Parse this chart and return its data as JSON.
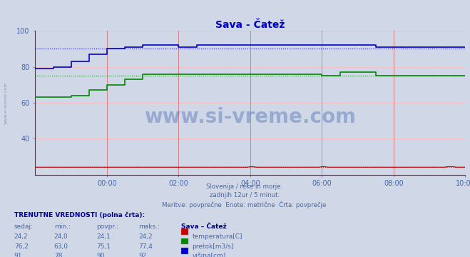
{
  "title": "Sava - Čatež",
  "title_color": "#0000cc",
  "bg_color": "#d0d8e8",
  "plot_bg_color": "#d0d8e8",
  "ylim": [
    20,
    100
  ],
  "xlim": [
    0,
    144
  ],
  "xtick_positions": [
    24,
    48,
    72,
    96,
    120,
    144
  ],
  "xtick_labels": [
    "00:00",
    "02:00",
    "04:00",
    "06:00",
    "08:00",
    "10:00"
  ],
  "ytick_positions": [
    40,
    60,
    80,
    100
  ],
  "ytick_labels": [
    "40",
    "60",
    "80",
    "100"
  ],
  "subtitle_lines": [
    "Slovenija / reke in morje.",
    "zadnjih 12ur / 5 minut.",
    "Meritve: povprečne  Enote: metrične  Črta: povprečje"
  ],
  "subtitle_color": "#4466aa",
  "watermark_text": "www.si-vreme.com",
  "watermark_color": "#4466aa",
  "watermark_alpha": 0.4,
  "grid_color_v": "#dd4444",
  "grid_color_h": "#ffbbbb",
  "temp_color": "#cc0000",
  "flow_color": "#008800",
  "height_color": "#0000cc",
  "flow_avg": 75.1,
  "height_avg": 90,
  "temp_avg": 24.1,
  "flow_data_x": [
    0,
    6,
    12,
    18,
    24,
    30,
    36,
    42,
    48,
    54,
    60,
    66,
    72,
    78,
    84,
    90,
    96,
    102,
    108,
    114,
    120,
    126,
    132,
    138,
    144
  ],
  "flow_data_y": [
    63,
    63,
    64,
    67,
    70,
    73,
    76,
    76,
    76,
    76,
    76,
    76,
    76,
    76,
    76,
    76,
    75,
    77,
    77,
    75,
    75,
    75,
    75,
    75,
    75
  ],
  "height_data_x": [
    0,
    6,
    12,
    18,
    24,
    30,
    36,
    42,
    48,
    54,
    60,
    66,
    72,
    78,
    84,
    90,
    96,
    102,
    108,
    114,
    120,
    126,
    132,
    138,
    144
  ],
  "height_data_y": [
    79,
    80,
    83,
    87,
    90,
    91,
    92,
    92,
    91,
    92,
    92,
    92,
    92,
    92,
    92,
    92,
    92,
    92,
    92,
    91,
    91,
    91,
    91,
    91,
    91
  ],
  "table_header_color": "#000099",
  "table_text_color": "#4466aa",
  "table_data": {
    "sedaj": [
      "24,2",
      "76,2",
      "91"
    ],
    "min": [
      "24,0",
      "63,0",
      "78"
    ],
    "povpr": [
      "24,1",
      "75,1",
      "90"
    ],
    "maks": [
      "24,2",
      "77,4",
      "92"
    ]
  },
  "legend_items": [
    {
      "label": "temperatura[C]",
      "color": "#cc0000"
    },
    {
      "label": "pretok[m3/s]",
      "color": "#008800"
    },
    {
      "label": "višina[cm]",
      "color": "#0000cc"
    }
  ],
  "left_label": "www.si-vreme.com",
  "left_label_color": "#7788aa"
}
